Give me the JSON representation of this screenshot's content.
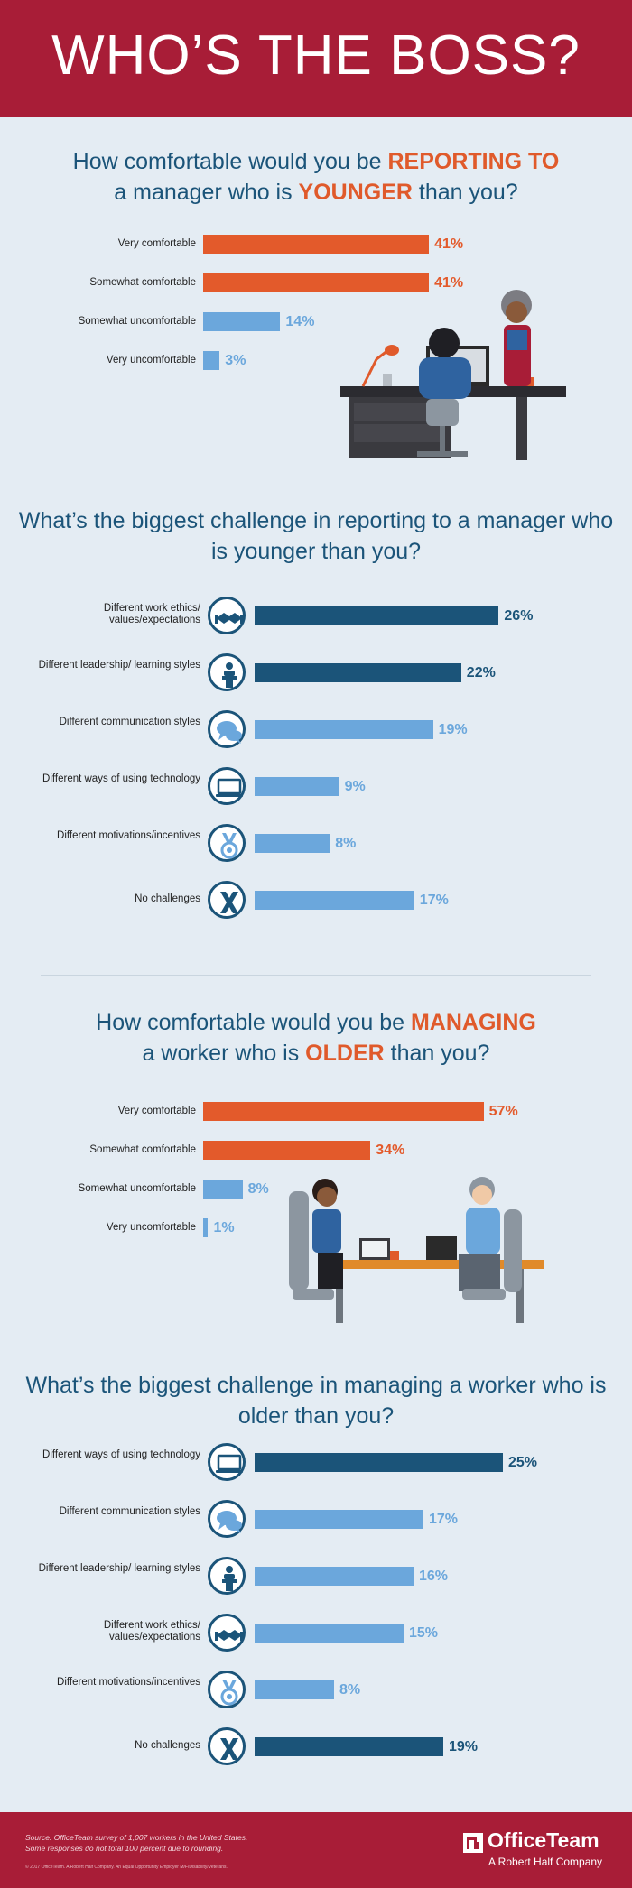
{
  "header": {
    "title": "WHO’S THE BOSS?"
  },
  "colors": {
    "orange": "#e35a2b",
    "light_blue": "#6ba7dc",
    "dark_blue": "#1b5479",
    "red": "#a81d37"
  },
  "section1": {
    "title_parts": [
      "How comfortable would you be ",
      "REPORTING TO",
      " a manager who is ",
      "YOUNGER",
      " than you?"
    ]
  },
  "section2": {
    "title": "What’s the biggest challenge in reporting to a manager who is younger than you?"
  },
  "section3": {
    "title_parts": [
      "How comfortable would you be ",
      "MANAGING",
      " a worker who is ",
      "OLDER",
      " than you?"
    ]
  },
  "section4": {
    "title": "What’s the biggest challenge in managing a worker who is older than you?"
  },
  "chart_data": [
    {
      "type": "bar",
      "categories": [
        "Very comfortable",
        "Somewhat comfortable",
        "Somewhat uncomfortable",
        "Very uncomfortable"
      ],
      "values": [
        41,
        41,
        14,
        3
      ],
      "value_labels": [
        "41%",
        "41%",
        "14%",
        "3%"
      ],
      "bar_colors": [
        "#e35a2b",
        "#e35a2b",
        "#6ba7dc",
        "#6ba7dc"
      ]
    },
    {
      "type": "bar",
      "categories": [
        "Different work ethics/ values/expectations",
        "Different leadership/ learning styles",
        "Different communication styles",
        "Different ways of using technology",
        "Different motivations/incentives",
        "No challenges"
      ],
      "values": [
        26,
        22,
        19,
        9,
        8,
        17
      ],
      "value_labels": [
        "26%",
        "22%",
        "19%",
        "9%",
        "8%",
        "17%"
      ],
      "icons": [
        "handshake-icon",
        "podium-icon",
        "speech-bubbles-icon",
        "laptop-icon",
        "medal-icon",
        "x-icon"
      ],
      "bar_colors": [
        "#1b5479",
        "#1b5479",
        "#6ba7dc",
        "#6ba7dc",
        "#6ba7dc",
        "#6ba7dc"
      ]
    },
    {
      "type": "bar",
      "categories": [
        "Very comfortable",
        "Somewhat comfortable",
        "Somewhat uncomfortable",
        "Very uncomfortable"
      ],
      "values": [
        57,
        34,
        8,
        1
      ],
      "value_labels": [
        "57%",
        "34%",
        "8%",
        "1%"
      ],
      "bar_colors": [
        "#e35a2b",
        "#e35a2b",
        "#6ba7dc",
        "#6ba7dc"
      ]
    },
    {
      "type": "bar",
      "categories": [
        "Different ways of using technology",
        "Different communication styles",
        "Different leadership/ learning styles",
        "Different work ethics/ values/expectations",
        "Different motivations/incentives",
        "No challenges"
      ],
      "values": [
        25,
        17,
        16,
        15,
        8,
        19
      ],
      "value_labels": [
        "25%",
        "17%",
        "16%",
        "15%",
        "8%",
        "19%"
      ],
      "icons": [
        "laptop-icon",
        "speech-bubbles-icon",
        "podium-icon",
        "handshake-icon",
        "medal-icon",
        "x-icon"
      ],
      "bar_colors": [
        "#1b5479",
        "#6ba7dc",
        "#6ba7dc",
        "#6ba7dc",
        "#6ba7dc",
        "#1b5479"
      ]
    }
  ],
  "footer": {
    "source": "Source: OfficeTeam survey of 1,007 workers in the United States.",
    "note": "Some responses do not total 100 percent due to rounding.",
    "copyright": "© 2017 OfficeTeam. A Robert Half Company. An Equal Opportunity Employer M/F/Disability/Veterans.",
    "logo_name": "OfficeTeam",
    "logo_tagline": "A Robert Half Company"
  }
}
